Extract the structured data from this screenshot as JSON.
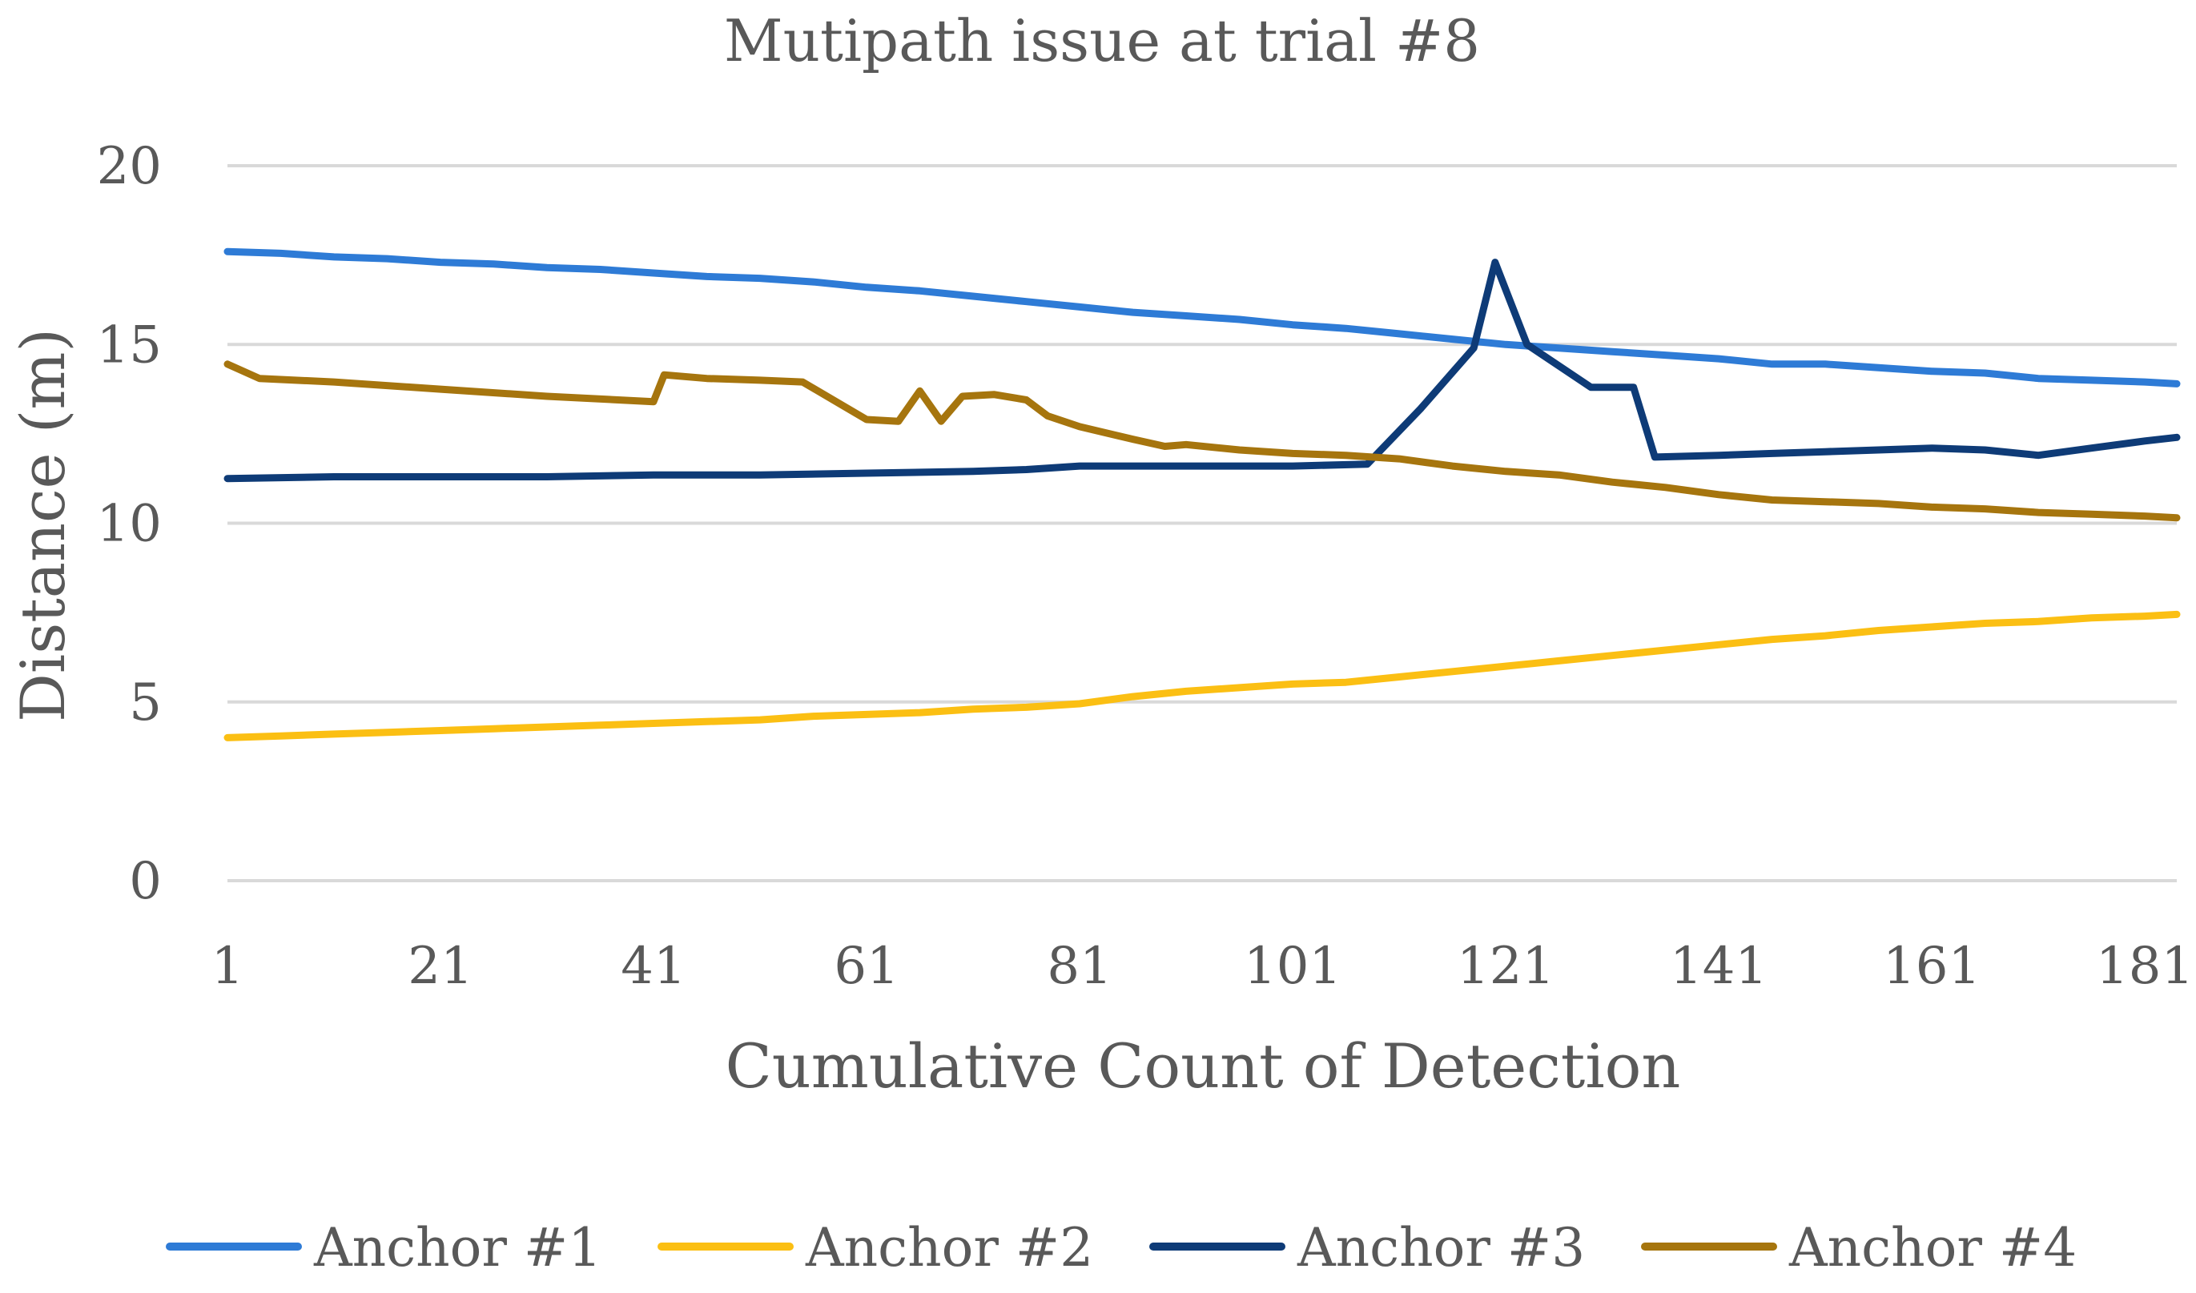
{
  "chart_data": {
    "type": "line",
    "title": "Mutipath issue at trial #8",
    "xlabel": "Cumulative Count of Detection",
    "ylabel": "Distance (m)",
    "xlim": [
      1,
      184
    ],
    "ylim": [
      0,
      20
    ],
    "x_ticks": [
      1,
      21,
      41,
      61,
      81,
      101,
      121,
      141,
      161,
      181
    ],
    "y_ticks": [
      0,
      5,
      10,
      15,
      20
    ],
    "grid": true,
    "legend_position": "bottom",
    "series": [
      {
        "name": "Anchor #1",
        "color": "#2e7bd6",
        "points": [
          [
            1,
            17.6
          ],
          [
            6,
            17.55
          ],
          [
            11,
            17.45
          ],
          [
            16,
            17.4
          ],
          [
            21,
            17.3
          ],
          [
            26,
            17.25
          ],
          [
            31,
            17.15
          ],
          [
            36,
            17.1
          ],
          [
            41,
            17.0
          ],
          [
            46,
            16.9
          ],
          [
            51,
            16.85
          ],
          [
            56,
            16.75
          ],
          [
            61,
            16.6
          ],
          [
            66,
            16.5
          ],
          [
            71,
            16.35
          ],
          [
            76,
            16.2
          ],
          [
            81,
            16.05
          ],
          [
            86,
            15.9
          ],
          [
            91,
            15.8
          ],
          [
            96,
            15.7
          ],
          [
            101,
            15.55
          ],
          [
            106,
            15.45
          ],
          [
            111,
            15.3
          ],
          [
            116,
            15.15
          ],
          [
            121,
            15.0
          ],
          [
            126,
            14.9
          ],
          [
            131,
            14.8
          ],
          [
            136,
            14.7
          ],
          [
            141,
            14.6
          ],
          [
            146,
            14.45
          ],
          [
            151,
            14.45
          ],
          [
            156,
            14.35
          ],
          [
            161,
            14.25
          ],
          [
            166,
            14.2
          ],
          [
            171,
            14.05
          ],
          [
            176,
            14.0
          ],
          [
            181,
            13.95
          ],
          [
            184,
            13.9
          ]
        ]
      },
      {
        "name": "Anchor #2",
        "color": "#fbbf13",
        "points": [
          [
            1,
            4.0
          ],
          [
            6,
            4.05
          ],
          [
            11,
            4.1
          ],
          [
            16,
            4.15
          ],
          [
            21,
            4.2
          ],
          [
            26,
            4.25
          ],
          [
            31,
            4.3
          ],
          [
            36,
            4.35
          ],
          [
            41,
            4.4
          ],
          [
            46,
            4.45
          ],
          [
            51,
            4.5
          ],
          [
            56,
            4.6
          ],
          [
            61,
            4.65
          ],
          [
            66,
            4.7
          ],
          [
            71,
            4.8
          ],
          [
            76,
            4.85
          ],
          [
            81,
            4.95
          ],
          [
            86,
            5.15
          ],
          [
            91,
            5.3
          ],
          [
            96,
            5.4
          ],
          [
            101,
            5.5
          ],
          [
            106,
            5.55
          ],
          [
            111,
            5.7
          ],
          [
            116,
            5.85
          ],
          [
            121,
            6.0
          ],
          [
            126,
            6.15
          ],
          [
            131,
            6.3
          ],
          [
            136,
            6.45
          ],
          [
            141,
            6.6
          ],
          [
            146,
            6.75
          ],
          [
            151,
            6.85
          ],
          [
            156,
            7.0
          ],
          [
            161,
            7.1
          ],
          [
            166,
            7.2
          ],
          [
            171,
            7.25
          ],
          [
            176,
            7.35
          ],
          [
            181,
            7.4
          ],
          [
            184,
            7.45
          ]
        ]
      },
      {
        "name": "Anchor #3",
        "color": "#0e3b77",
        "points": [
          [
            1,
            11.25
          ],
          [
            11,
            11.3
          ],
          [
            21,
            11.3
          ],
          [
            31,
            11.3
          ],
          [
            41,
            11.35
          ],
          [
            51,
            11.35
          ],
          [
            61,
            11.4
          ],
          [
            71,
            11.45
          ],
          [
            76,
            11.5
          ],
          [
            81,
            11.6
          ],
          [
            91,
            11.6
          ],
          [
            101,
            11.6
          ],
          [
            108,
            11.65
          ],
          [
            113,
            13.2
          ],
          [
            118,
            14.9
          ],
          [
            120,
            17.3
          ],
          [
            123,
            15.0
          ],
          [
            129,
            13.8
          ],
          [
            133,
            13.8
          ],
          [
            135,
            11.85
          ],
          [
            141,
            11.9
          ],
          [
            146,
            11.95
          ],
          [
            151,
            12.0
          ],
          [
            156,
            12.05
          ],
          [
            161,
            12.1
          ],
          [
            166,
            12.05
          ],
          [
            171,
            11.9
          ],
          [
            176,
            12.1
          ],
          [
            181,
            12.3
          ],
          [
            184,
            12.4
          ]
        ]
      },
      {
        "name": "Anchor #4",
        "color": "#a6750e",
        "points": [
          [
            1,
            14.45
          ],
          [
            4,
            14.05
          ],
          [
            11,
            13.95
          ],
          [
            21,
            13.75
          ],
          [
            31,
            13.55
          ],
          [
            41,
            13.4
          ],
          [
            42,
            14.15
          ],
          [
            46,
            14.05
          ],
          [
            51,
            14.0
          ],
          [
            55,
            13.95
          ],
          [
            61,
            12.9
          ],
          [
            64,
            12.85
          ],
          [
            66,
            13.7
          ],
          [
            68,
            12.85
          ],
          [
            70,
            13.55
          ],
          [
            73,
            13.6
          ],
          [
            76,
            13.45
          ],
          [
            78,
            13.0
          ],
          [
            81,
            12.7
          ],
          [
            86,
            12.35
          ],
          [
            89,
            12.15
          ],
          [
            91,
            12.2
          ],
          [
            96,
            12.05
          ],
          [
            101,
            11.95
          ],
          [
            106,
            11.9
          ],
          [
            111,
            11.8
          ],
          [
            116,
            11.6
          ],
          [
            121,
            11.45
          ],
          [
            126,
            11.35
          ],
          [
            131,
            11.15
          ],
          [
            136,
            11.0
          ],
          [
            141,
            10.8
          ],
          [
            146,
            10.65
          ],
          [
            151,
            10.6
          ],
          [
            156,
            10.55
          ],
          [
            161,
            10.45
          ],
          [
            166,
            10.4
          ],
          [
            171,
            10.3
          ],
          [
            176,
            10.25
          ],
          [
            181,
            10.2
          ],
          [
            184,
            10.15
          ]
        ]
      }
    ]
  }
}
